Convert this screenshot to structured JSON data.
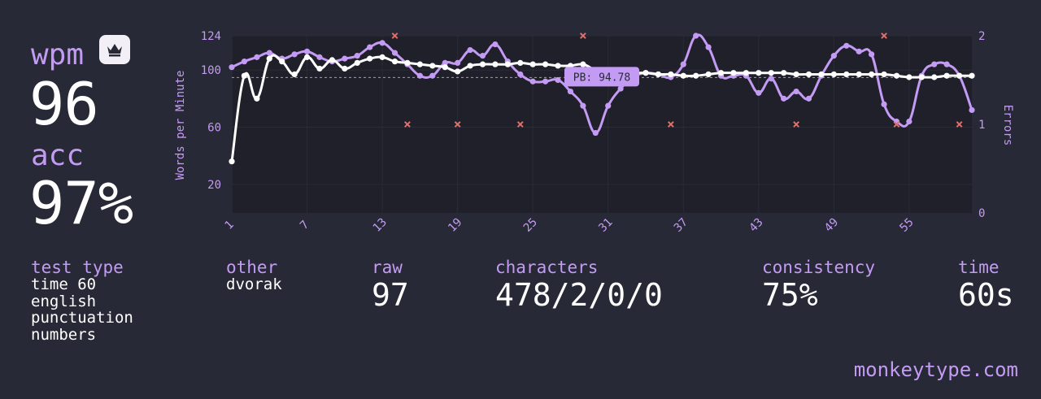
{
  "stats": {
    "wpm_label": "wpm",
    "wpm_value": "96",
    "acc_label": "acc",
    "acc_value": "97%",
    "crown_icon": "crown-icon"
  },
  "details": {
    "test_type_label": "test type",
    "test_type_lines": [
      "time 60",
      "english",
      "punctuation",
      "numbers"
    ],
    "other_label": "other",
    "other_value": "dvorak",
    "raw_label": "raw",
    "raw_value": "97",
    "characters_label": "characters",
    "characters_value": "478/2/0/0",
    "consistency_label": "consistency",
    "consistency_value": "75%",
    "time_label": "time",
    "time_value": "60s"
  },
  "footer": {
    "brand": "monkeytype.com"
  },
  "colors": {
    "background": "#282936",
    "plot_background": "#1f2029",
    "accent": "#c49bf4",
    "wpm_line": "#ffffff",
    "error_marker": "#e0706a"
  },
  "chart_data": {
    "type": "line",
    "ylabel": "Words per Minute",
    "y2label": "Errors",
    "ylim": [
      0,
      124
    ],
    "y2lim": [
      0,
      2
    ],
    "yticks": [
      20,
      60,
      100,
      124
    ],
    "y2ticks": [
      0,
      1,
      2
    ],
    "xticks": [
      1,
      7,
      13,
      19,
      25,
      31,
      37,
      43,
      49,
      55
    ],
    "x": [
      1,
      2,
      3,
      4,
      5,
      6,
      7,
      8,
      9,
      10,
      11,
      12,
      13,
      14,
      15,
      16,
      17,
      18,
      19,
      20,
      21,
      22,
      23,
      24,
      25,
      26,
      27,
      28,
      29,
      30,
      31,
      32,
      33,
      34,
      35,
      36,
      37,
      38,
      39,
      40,
      41,
      42,
      43,
      44,
      45,
      46,
      47,
      48,
      49,
      50,
      51,
      52,
      53,
      54,
      55,
      56,
      57,
      58,
      59,
      60
    ],
    "series": [
      {
        "name": "wpm",
        "values": [
          36,
          96,
          80,
          108,
          106,
          97,
          109,
          101,
          107,
          101,
          105,
          108,
          109,
          106,
          105,
          104,
          103,
          102,
          99,
          103,
          104,
          104,
          104,
          105,
          104,
          104,
          103,
          103,
          104,
          100,
          99,
          99,
          98,
          98,
          97,
          97,
          96,
          96,
          97,
          98,
          98,
          98,
          98,
          98,
          98,
          97,
          97,
          97,
          97,
          97,
          97,
          97,
          97,
          96,
          95,
          95,
          95,
          96,
          96,
          96
        ]
      },
      {
        "name": "raw",
        "values": [
          102,
          106,
          109,
          112,
          108,
          111,
          113,
          109,
          106,
          108,
          110,
          116,
          119,
          112,
          104,
          96,
          96,
          105,
          105,
          114,
          110,
          118,
          106,
          97,
          92,
          92,
          93,
          85,
          75,
          56,
          75,
          87,
          95,
          98,
          97,
          95,
          104,
          124,
          116,
          96,
          96,
          96,
          84,
          94,
          80,
          85,
          80,
          96,
          110,
          117,
          113,
          111,
          76,
          64,
          64,
          96,
          104,
          104,
          96,
          72
        ]
      }
    ],
    "errors": [
      {
        "x": 14,
        "y": 2
      },
      {
        "x": 15,
        "y": 1
      },
      {
        "x": 19,
        "y": 1
      },
      {
        "x": 24,
        "y": 1
      },
      {
        "x": 29,
        "y": 2
      },
      {
        "x": 36,
        "y": 1
      },
      {
        "x": 46,
        "y": 1
      },
      {
        "x": 53,
        "y": 2
      },
      {
        "x": 54,
        "y": 1
      },
      {
        "x": 59,
        "y": 1
      }
    ],
    "pb": {
      "label": "PB: 94.78",
      "value": 94.78
    },
    "grid": true
  }
}
